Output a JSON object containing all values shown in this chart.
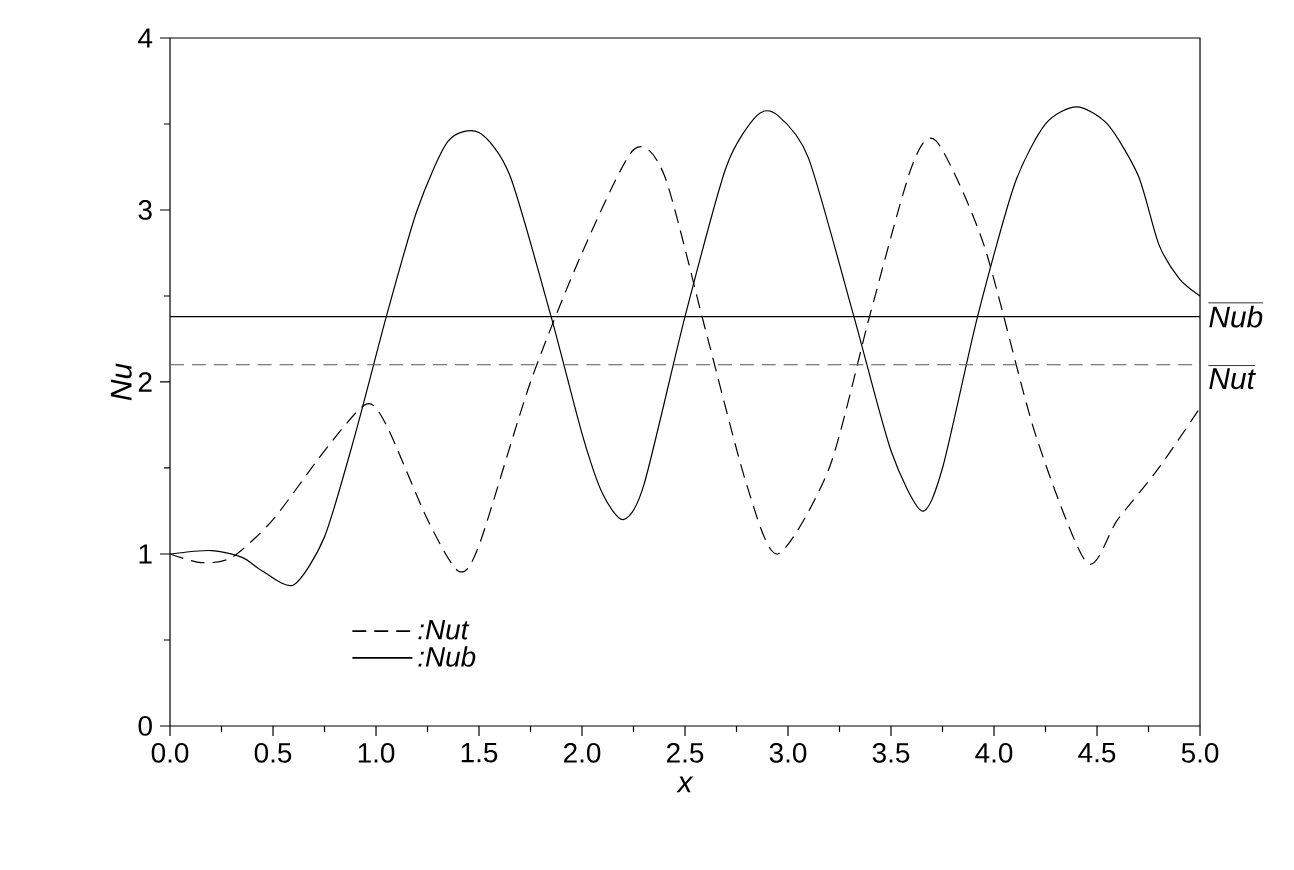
{
  "chart_data": {
    "type": "line",
    "xlabel": "x",
    "ylabel": "Nu",
    "xlim": [
      0,
      5
    ],
    "xticks": [
      {
        "value": 0,
        "label": "0.0"
      },
      {
        "value": 0.5,
        "label": "0.5"
      },
      {
        "value": 1,
        "label": "1.0"
      },
      {
        "value": 1.5,
        "label": "1.5"
      },
      {
        "value": 2,
        "label": "2.0"
      },
      {
        "value": 2.5,
        "label": "2.5"
      },
      {
        "value": 3,
        "label": "3.0"
      },
      {
        "value": 3.5,
        "label": "3.5"
      },
      {
        "value": 4,
        "label": "4.0"
      },
      {
        "value": 4.5,
        "label": "4.5"
      },
      {
        "value": 5,
        "label": "5.0"
      }
    ],
    "ylim": [
      0,
      4
    ],
    "yticks": [
      0,
      1,
      2,
      3,
      4
    ],
    "grid": false,
    "legend": "bottom left",
    "marker": "none",
    "series": [
      {
        "name": ":Nut",
        "color": "#000000",
        "line_style": "dashed",
        "x": [
          0,
          0.15,
          0.3,
          0.5,
          0.75,
          0.95,
          1.05,
          1.25,
          1.4,
          1.5,
          1.75,
          2.0,
          2.25,
          2.4,
          2.6,
          2.8,
          2.95,
          3.2,
          3.4,
          3.6,
          3.72,
          3.95,
          4.2,
          4.45,
          4.6,
          4.8,
          5.0
        ],
        "values": [
          1.0,
          0.95,
          0.98,
          1.2,
          1.6,
          1.87,
          1.75,
          1.2,
          0.9,
          1.05,
          2.0,
          2.75,
          3.35,
          3.2,
          2.3,
          1.4,
          1.0,
          1.5,
          2.4,
          3.25,
          3.4,
          2.8,
          1.7,
          0.95,
          1.2,
          1.5,
          1.85
        ]
      },
      {
        "name": ":Nub",
        "color": "#000000",
        "line_style": "solid",
        "x": [
          0,
          0.2,
          0.35,
          0.45,
          0.6,
          0.75,
          0.9,
          1.05,
          1.2,
          1.35,
          1.5,
          1.65,
          1.85,
          2.0,
          2.1,
          2.2,
          2.3,
          2.5,
          2.7,
          2.85,
          2.95,
          3.1,
          3.32,
          3.5,
          3.65,
          3.75,
          3.92,
          4.1,
          4.25,
          4.4,
          4.55,
          4.7,
          4.8,
          4.9,
          5.0
        ],
        "values": [
          1.0,
          1.02,
          0.98,
          0.9,
          0.82,
          1.1,
          1.7,
          2.38,
          3.0,
          3.4,
          3.45,
          3.2,
          2.38,
          1.7,
          1.35,
          1.2,
          1.4,
          2.38,
          3.25,
          3.55,
          3.55,
          3.3,
          2.38,
          1.6,
          1.25,
          1.5,
          2.38,
          3.15,
          3.5,
          3.6,
          3.5,
          3.2,
          2.8,
          2.6,
          2.5
        ]
      }
    ],
    "ref_lines": [
      {
        "axis": "y",
        "value": 2.38,
        "label": "Nub",
        "color": "#000000",
        "line_style": "solid"
      },
      {
        "axis": "y",
        "value": 2.1,
        "label": "Nut",
        "color": "#555555",
        "line_style": "dashed"
      }
    ]
  }
}
